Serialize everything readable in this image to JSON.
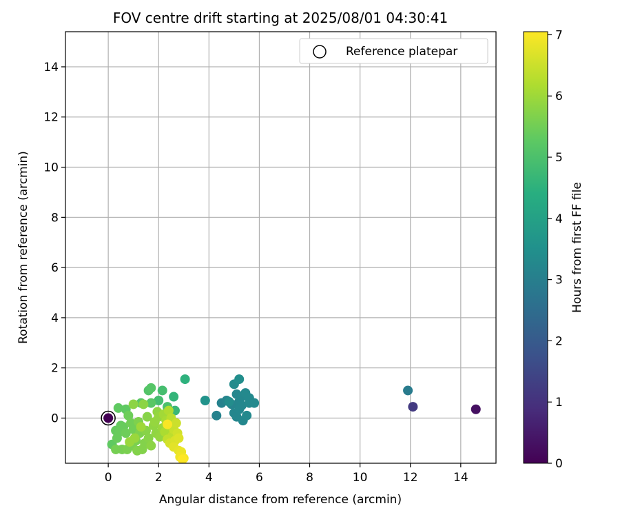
{
  "chart_data": {
    "type": "scatter",
    "title": "FOV centre drift starting at 2025/08/01 04:30:41",
    "xlabel": "Angular distance from reference (arcmin)",
    "ylabel": "Rotation from reference (arcmin)",
    "xlim": [
      -1.7,
      15.4
    ],
    "ylim": [
      -1.8,
      15.4
    ],
    "x_ticks": [
      0,
      2,
      4,
      6,
      8,
      10,
      12,
      14
    ],
    "y_ticks": [
      0,
      2,
      4,
      6,
      8,
      10,
      12,
      14
    ],
    "grid": true,
    "legend": {
      "placement": "top-right",
      "entries": [
        "Reference platepar"
      ]
    },
    "reference_point": {
      "x": 0,
      "y": 0
    },
    "colorbar": {
      "label": "Hours from first FF file",
      "min": 0,
      "max": 7.05,
      "ticks": [
        0,
        1,
        2,
        3,
        4,
        5,
        6,
        7
      ],
      "colormap": "viridis"
    },
    "points": [
      {
        "x": 0.0,
        "y": 0.0,
        "h": 0.0
      },
      {
        "x": 14.6,
        "y": 0.35,
        "h": 0.3
      },
      {
        "x": 12.1,
        "y": 0.45,
        "h": 1.2
      },
      {
        "x": 11.9,
        "y": 1.1,
        "h": 2.9
      },
      {
        "x": 4.3,
        "y": 0.1,
        "h": 3.1
      },
      {
        "x": 4.5,
        "y": 0.6,
        "h": 3.1
      },
      {
        "x": 4.7,
        "y": 0.7,
        "h": 3.15
      },
      {
        "x": 4.9,
        "y": 0.55,
        "h": 3.15
      },
      {
        "x": 5.0,
        "y": 0.2,
        "h": 3.2
      },
      {
        "x": 5.1,
        "y": 0.05,
        "h": 3.2
      },
      {
        "x": 5.1,
        "y": 0.95,
        "h": 3.2
      },
      {
        "x": 5.2,
        "y": 0.65,
        "h": 3.2
      },
      {
        "x": 5.2,
        "y": 0.35,
        "h": 3.25
      },
      {
        "x": 5.3,
        "y": 0.85,
        "h": 3.25
      },
      {
        "x": 5.3,
        "y": 0.5,
        "h": 3.25
      },
      {
        "x": 5.35,
        "y": -0.1,
        "h": 3.25
      },
      {
        "x": 5.45,
        "y": 1.0,
        "h": 3.3
      },
      {
        "x": 5.5,
        "y": 0.1,
        "h": 3.3
      },
      {
        "x": 5.6,
        "y": 0.8,
        "h": 3.3
      },
      {
        "x": 5.6,
        "y": 0.6,
        "h": 3.3
      },
      {
        "x": 5.8,
        "y": 0.6,
        "h": 3.3
      },
      {
        "x": 5.0,
        "y": 1.35,
        "h": 3.35
      },
      {
        "x": 5.2,
        "y": 1.55,
        "h": 3.45
      },
      {
        "x": 4.8,
        "y": 0.65,
        "h": 3.4
      },
      {
        "x": 3.85,
        "y": 0.7,
        "h": 3.6
      },
      {
        "x": 3.05,
        "y": 1.55,
        "h": 4.5
      },
      {
        "x": 2.6,
        "y": 0.85,
        "h": 4.6
      },
      {
        "x": 2.65,
        "y": 0.3,
        "h": 4.7
      },
      {
        "x": 2.15,
        "y": 1.1,
        "h": 4.9
      },
      {
        "x": 2.0,
        "y": 0.7,
        "h": 4.9
      },
      {
        "x": 2.35,
        "y": 0.45,
        "h": 5.0
      },
      {
        "x": 1.6,
        "y": 1.1,
        "h": 5.1
      },
      {
        "x": 1.7,
        "y": 1.2,
        "h": 5.15
      },
      {
        "x": 1.3,
        "y": 0.6,
        "h": 5.2
      },
      {
        "x": 1.7,
        "y": 0.6,
        "h": 5.2
      },
      {
        "x": 0.4,
        "y": 0.4,
        "h": 5.3
      },
      {
        "x": 0.7,
        "y": 0.35,
        "h": 5.3
      },
      {
        "x": 0.15,
        "y": -1.05,
        "h": 5.3
      },
      {
        "x": 0.3,
        "y": -0.5,
        "h": 5.35
      },
      {
        "x": 0.5,
        "y": -0.3,
        "h": 5.35
      },
      {
        "x": 0.45,
        "y": -0.55,
        "h": 5.4
      },
      {
        "x": 0.6,
        "y": -0.35,
        "h": 5.4
      },
      {
        "x": 0.35,
        "y": -0.8,
        "h": 5.4
      },
      {
        "x": 0.7,
        "y": -0.6,
        "h": 5.45
      },
      {
        "x": 0.8,
        "y": 0.1,
        "h": 5.45
      },
      {
        "x": 0.9,
        "y": -0.2,
        "h": 5.5
      },
      {
        "x": 1.0,
        "y": -0.45,
        "h": 5.5
      },
      {
        "x": 0.3,
        "y": -1.25,
        "h": 5.55
      },
      {
        "x": 0.55,
        "y": -1.25,
        "h": 5.55
      },
      {
        "x": 0.75,
        "y": -1.25,
        "h": 5.6
      },
      {
        "x": 0.95,
        "y": -1.1,
        "h": 5.6
      },
      {
        "x": 1.1,
        "y": -0.9,
        "h": 5.6
      },
      {
        "x": 1.2,
        "y": -0.15,
        "h": 5.65
      },
      {
        "x": 1.25,
        "y": -0.6,
        "h": 5.65
      },
      {
        "x": 1.15,
        "y": -1.3,
        "h": 5.7
      },
      {
        "x": 1.35,
        "y": -1.25,
        "h": 5.7
      },
      {
        "x": 1.45,
        "y": -1.0,
        "h": 5.7
      },
      {
        "x": 1.5,
        "y": -0.5,
        "h": 5.75
      },
      {
        "x": 1.55,
        "y": 0.05,
        "h": 5.75
      },
      {
        "x": 1.6,
        "y": -0.8,
        "h": 5.75
      },
      {
        "x": 1.7,
        "y": -1.1,
        "h": 5.8
      },
      {
        "x": 1.0,
        "y": 0.55,
        "h": 5.8
      },
      {
        "x": 1.4,
        "y": 0.55,
        "h": 5.8
      },
      {
        "x": 1.8,
        "y": -0.3,
        "h": 5.85
      },
      {
        "x": 1.9,
        "y": -0.6,
        "h": 5.85
      },
      {
        "x": 1.95,
        "y": 0.25,
        "h": 5.85
      },
      {
        "x": 2.05,
        "y": -0.75,
        "h": 5.9
      },
      {
        "x": 2.0,
        "y": 0.05,
        "h": 5.9
      },
      {
        "x": 1.85,
        "y": -0.15,
        "h": 5.9
      },
      {
        "x": 2.15,
        "y": -0.4,
        "h": 5.95
      },
      {
        "x": 1.05,
        "y": -0.8,
        "h": 5.95
      },
      {
        "x": 0.85,
        "y": -0.95,
        "h": 5.95
      },
      {
        "x": 1.3,
        "y": -0.35,
        "h": 6.0
      },
      {
        "x": 2.2,
        "y": 0.15,
        "h": 6.05
      },
      {
        "x": 2.3,
        "y": -0.1,
        "h": 6.1
      },
      {
        "x": 2.25,
        "y": -0.55,
        "h": 6.15
      },
      {
        "x": 2.4,
        "y": 0.3,
        "h": 6.2
      },
      {
        "x": 2.45,
        "y": -0.3,
        "h": 6.25
      },
      {
        "x": 2.5,
        "y": 0.0,
        "h": 6.3
      },
      {
        "x": 2.55,
        "y": -0.7,
        "h": 6.35
      },
      {
        "x": 2.35,
        "y": -0.85,
        "h": 6.4
      },
      {
        "x": 2.6,
        "y": -0.45,
        "h": 6.45
      },
      {
        "x": 2.7,
        "y": -0.2,
        "h": 6.5
      },
      {
        "x": 2.75,
        "y": -0.6,
        "h": 6.55
      },
      {
        "x": 2.45,
        "y": -1.0,
        "h": 6.6
      },
      {
        "x": 2.65,
        "y": -0.9,
        "h": 6.65
      },
      {
        "x": 2.8,
        "y": -0.8,
        "h": 6.7
      },
      {
        "x": 2.6,
        "y": -1.15,
        "h": 6.75
      },
      {
        "x": 2.8,
        "y": -1.3,
        "h": 6.8
      },
      {
        "x": 2.9,
        "y": -1.35,
        "h": 6.85
      },
      {
        "x": 2.85,
        "y": -1.55,
        "h": 6.9
      },
      {
        "x": 3.0,
        "y": -1.6,
        "h": 6.95
      },
      {
        "x": 2.35,
        "y": -0.25,
        "h": 7.0
      },
      {
        "x": 2.95,
        "y": -1.65,
        "h": 7.05
      }
    ]
  }
}
